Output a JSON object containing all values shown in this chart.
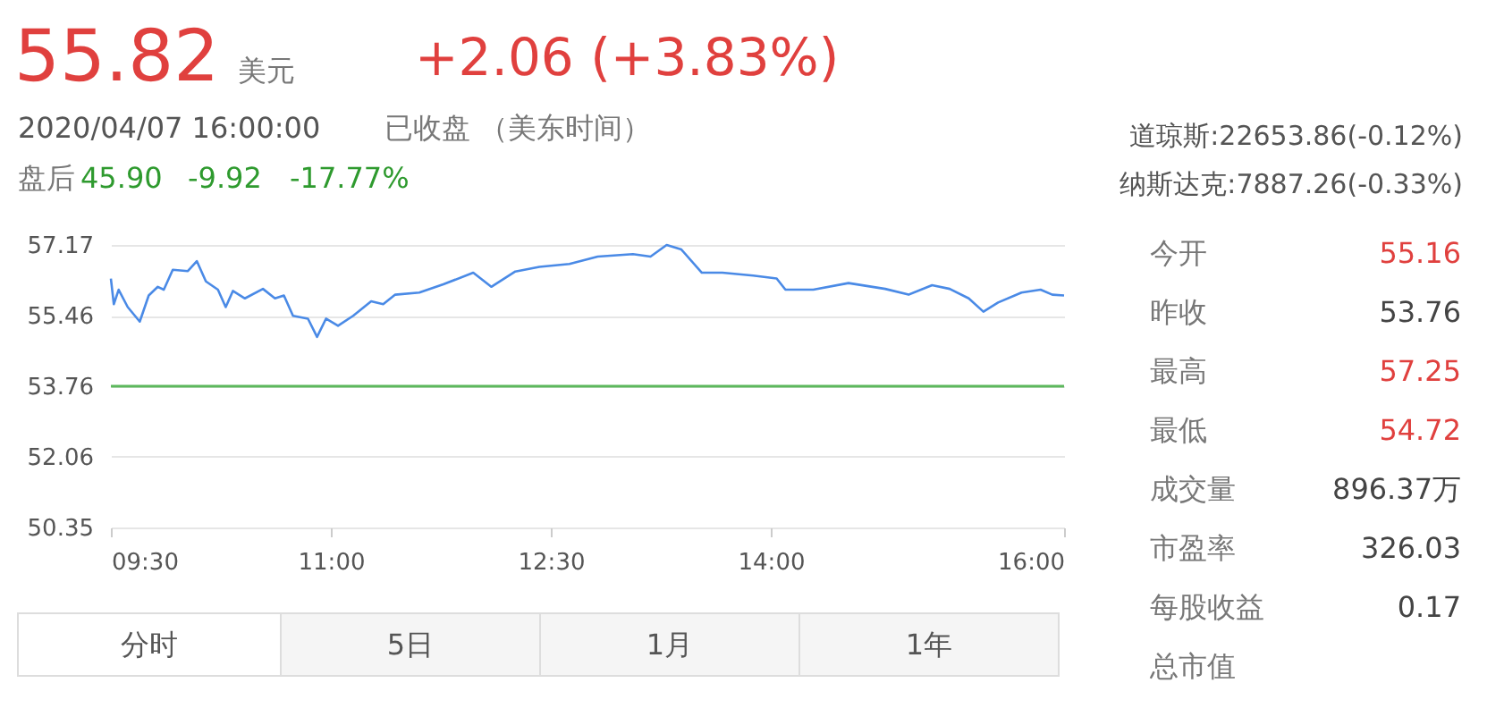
{
  "chart_data": {
    "type": "line",
    "x": [
      9.5,
      9.52,
      9.553,
      9.615,
      9.697,
      9.758,
      9.82,
      9.861,
      9.922,
      10.025,
      10.086,
      10.148,
      10.23,
      10.283,
      10.332,
      10.414,
      10.537,
      10.619,
      10.68,
      10.742,
      10.844,
      10.906,
      10.967,
      11.049,
      11.152,
      11.275,
      11.357,
      11.439,
      11.603,
      11.767,
      11.971,
      12.094,
      12.258,
      12.422,
      12.627,
      12.82,
      13.06,
      13.18,
      13.29,
      13.39,
      13.53,
      13.67,
      13.88,
      14.04,
      14.1,
      14.29,
      14.53,
      14.78,
      14.94,
      15.1,
      15.22,
      15.35,
      15.45,
      15.55,
      15.71,
      15.84,
      15.92,
      16.0
    ],
    "series": [
      {
        "color": "#4a8ae6",
        "values": [
          56.36,
          55.74,
          56.09,
          55.67,
          55.32,
          55.95,
          56.16,
          56.09,
          56.57,
          56.54,
          56.78,
          56.29,
          56.09,
          55.67,
          56.06,
          55.88,
          56.11,
          55.88,
          55.95,
          55.46,
          55.39,
          54.95,
          55.39,
          55.22,
          55.46,
          55.81,
          55.74,
          55.97,
          56.02,
          56.22,
          56.5,
          56.16,
          56.53,
          56.64,
          56.71,
          56.89,
          56.95,
          56.89,
          57.17,
          57.06,
          56.5,
          56.5,
          56.43,
          56.36,
          56.09,
          56.09,
          56.25,
          56.11,
          55.97,
          56.2,
          56.11,
          55.88,
          55.56,
          55.78,
          56.02,
          56.09,
          55.97,
          55.95
        ]
      }
    ],
    "xlim": [
      9.5,
      16.0
    ],
    "xticks": [
      {
        "value": 9.5,
        "label": "09:30"
      },
      {
        "value": 11.0,
        "label": "11:00"
      },
      {
        "value": 12.5,
        "label": "12:30"
      },
      {
        "value": 14.0,
        "label": "14:00"
      },
      {
        "value": 16.0,
        "label": "16:00"
      }
    ],
    "ylim": [
      50.35,
      57.17
    ],
    "yticks": [
      50.35,
      52.06,
      53.76,
      55.46,
      57.17
    ],
    "grid": "y",
    "ref_lines": [
      {
        "axis": "y",
        "value": 53.76,
        "color": "#5cb85c",
        "line_style": "solid"
      }
    ],
    "annotations": [
      "55.82",
      "美元",
      "+2.06 (+3.83%)",
      "2020/04/07 16:00:00",
      "已收盘 （美东时间）",
      "盘后",
      "45.90",
      "-9.92",
      "-17.77%",
      "道琼斯:22653.86(-0.12%)",
      "纳斯达克:7887.26(-0.33%)",
      "今开",
      "55.16",
      "昨收",
      "53.76",
      "最高",
      "57.25",
      "最低",
      "54.72",
      "成交量",
      "896.37万",
      "市盈率",
      "326.03",
      "每股收益",
      "0.17",
      "总市值",
      "分时",
      "5日",
      "1月",
      "1年"
    ]
  }
}
